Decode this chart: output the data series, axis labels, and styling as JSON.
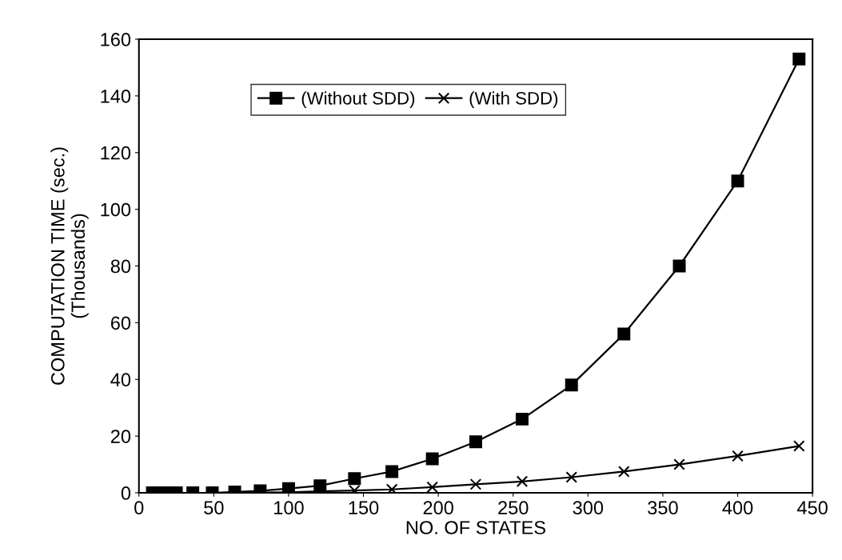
{
  "chart_data": {
    "type": "line",
    "xlabel": "NO. OF STATES",
    "ylabel": "COMPUTATION TIME (sec.)\n(Thousands)",
    "x": [
      9,
      12,
      16,
      20,
      25,
      36,
      49,
      64,
      81,
      100,
      121,
      144,
      169,
      196,
      225,
      256,
      289,
      324,
      361,
      400,
      441
    ],
    "series": [
      {
        "name": "(Without SDD)",
        "color": "#000000",
        "marker": "square",
        "values": [
          0,
          0,
          0,
          0,
          0,
          0,
          0,
          0.3,
          0.7,
          1.5,
          2.5,
          5,
          7.5,
          12,
          18,
          26,
          38,
          56,
          80,
          110,
          153
        ]
      },
      {
        "name": "(With SDD)",
        "color": "#000000",
        "marker": "cross",
        "values": [
          0,
          0,
          0,
          0,
          0,
          0,
          0,
          0,
          0.1,
          0.2,
          0.5,
          0.8,
          1.2,
          2,
          3,
          4,
          5.5,
          7.5,
          10,
          13,
          16.5
        ]
      }
    ],
    "xlim": [
      0,
      450
    ],
    "xticks": [
      0,
      50,
      100,
      150,
      200,
      250,
      300,
      350,
      400,
      450
    ],
    "ylim": [
      0,
      160
    ],
    "yticks": [
      0,
      20,
      40,
      60,
      80,
      100,
      120,
      140,
      160
    ],
    "grid": false,
    "legend": "top",
    "line_style": "solid"
  }
}
